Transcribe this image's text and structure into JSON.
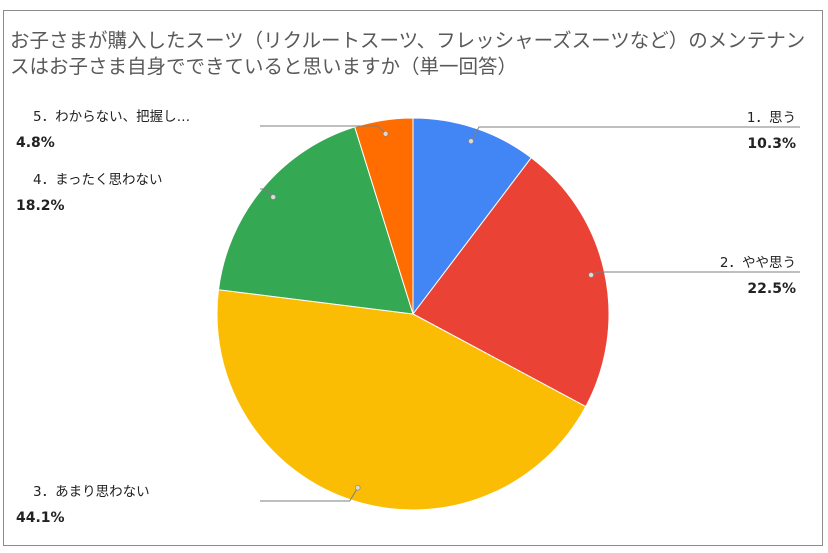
{
  "chart_data": {
    "type": "pie",
    "title": "お子さまが購入したスーツ（リクルートスーツ、フレッシャーズスーツなど）のメンテナンスはお子さま自身でできていると思いますか（単一回答）",
    "slices": [
      {
        "label": "1．思う",
        "value": 10.3,
        "value_label": "10.3%",
        "color": "#4285F4"
      },
      {
        "label": "2．やや思う",
        "value": 22.5,
        "value_label": "22.5%",
        "color": "#EA4335"
      },
      {
        "label": "3．あまり思わない",
        "value": 44.1,
        "value_label": "44.1%",
        "color": "#FBBC04"
      },
      {
        "label": "4．まったく思わない",
        "value": 18.2,
        "value_label": "18.2%",
        "color": "#34A853"
      },
      {
        "label": "5．わからない、把握し…",
        "value": 4.8,
        "value_label": "4.8%",
        "color": "#FF6D01"
      }
    ],
    "legend": "none"
  }
}
